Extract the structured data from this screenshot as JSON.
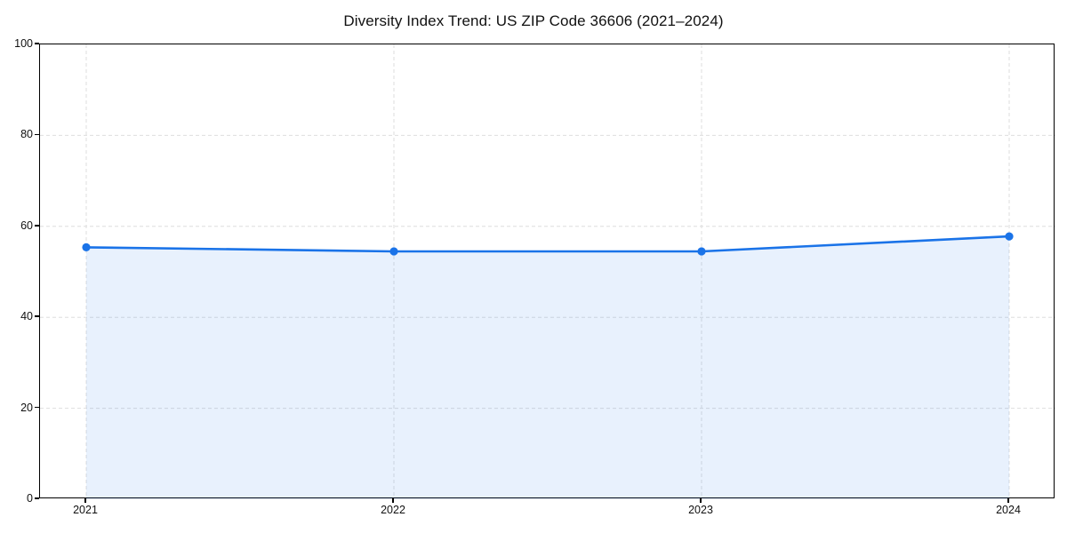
{
  "chart_data": {
    "type": "area",
    "title": "Diversity Index Trend: US ZIP Code 36606 (2021–2024)",
    "categories": [
      "2021",
      "2022",
      "2023",
      "2024"
    ],
    "series": [
      {
        "name": "Diversity Index",
        "values": [
          55.4,
          54.5,
          54.5,
          57.8
        ]
      }
    ],
    "xlabel": "",
    "ylabel": "",
    "ylim": [
      0,
      100
    ],
    "yticks": [
      0,
      20,
      40,
      60,
      80,
      100
    ],
    "grid": "dashed, both axes",
    "legend": "none",
    "colors": {
      "line": "#1a73e8",
      "marker": "#1a73e8",
      "fill": "#1a73e8",
      "fill_opacity": 0.1,
      "grid": "#dedede",
      "spine": "#000000",
      "text": "#111111",
      "background": "#ffffff"
    }
  }
}
